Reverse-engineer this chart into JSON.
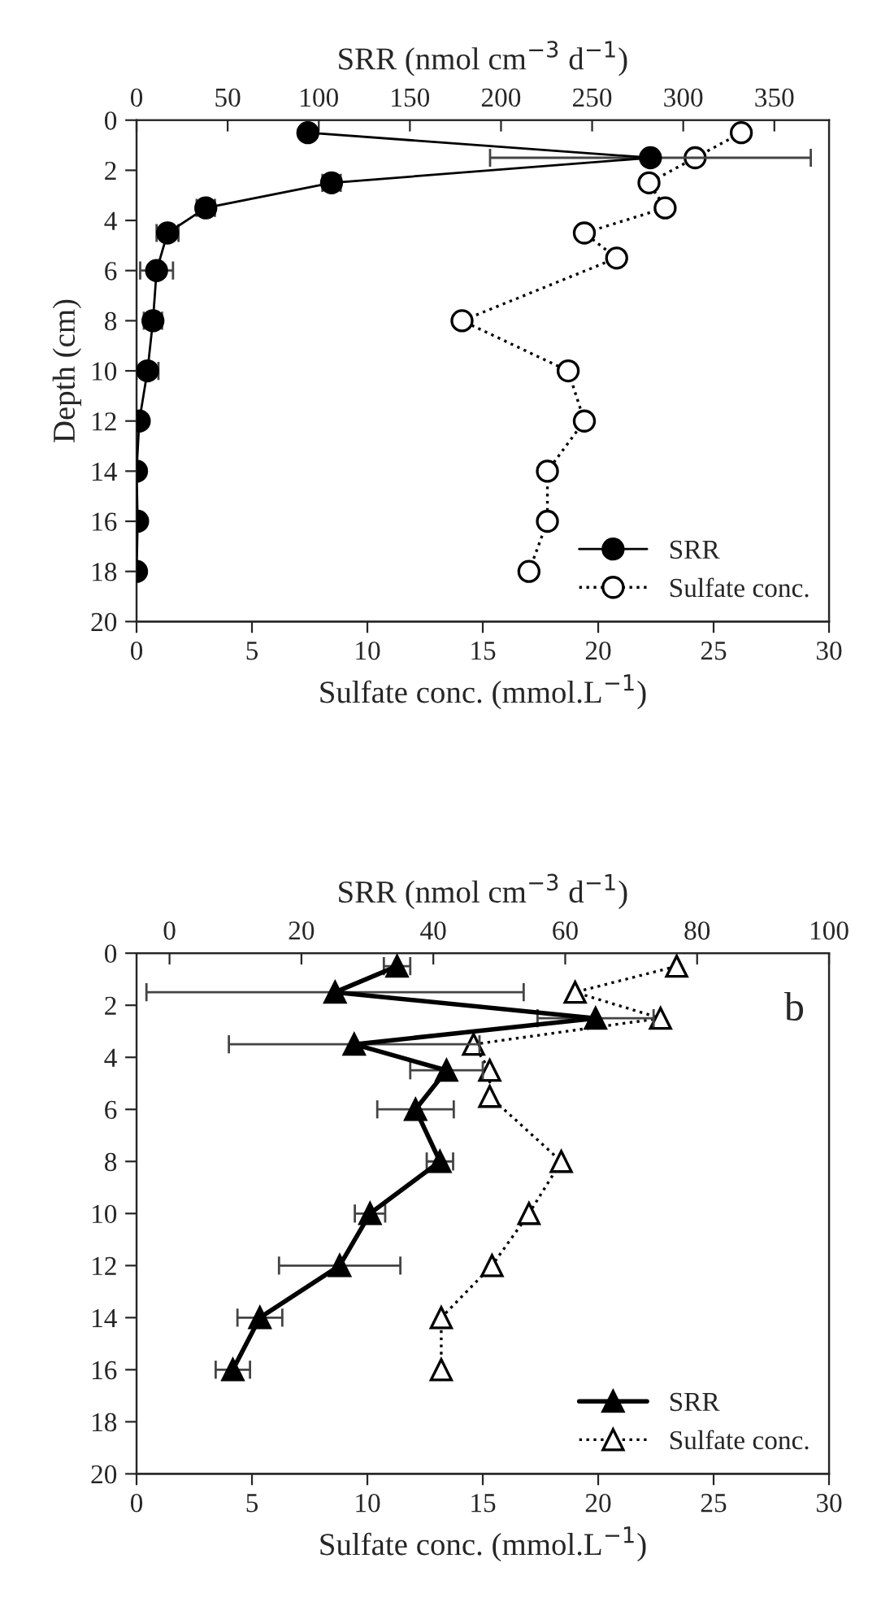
{
  "chart_data": [
    {
      "type": "line",
      "xlabel": "Sulfate conc. (mmol.L$^{−1}$)",
      "ylabel": "Depth (cm)",
      "x2label": "SRR (nmol cm$^{−3}$ d$^{−1}$)",
      "xlim": [
        0,
        30
      ],
      "xticks": [
        0,
        5,
        10,
        15,
        20,
        25,
        30
      ],
      "x2lim": [
        0,
        380
      ],
      "x2ticks": [
        0,
        50,
        100,
        150,
        200,
        250,
        300,
        350
      ],
      "ylim": [
        20,
        0
      ],
      "yticks": [
        0,
        2,
        4,
        6,
        8,
        10,
        12,
        14,
        16,
        18,
        20
      ],
      "grid": false,
      "legend": "bottom right",
      "series": [
        {
          "name": "SRR",
          "axis": "x2",
          "color": "#000000",
          "marker": "circle",
          "line_style": "solid",
          "x": [
            94,
            282,
            107,
            38,
            17,
            11,
            9,
            6,
            1.5,
            0,
            0.6,
            0
          ],
          "values": [
            0.5,
            1.5,
            2.5,
            3.5,
            4.5,
            6,
            8,
            10,
            12,
            14,
            16,
            18
          ],
          "xerrors": [
            null,
            88,
            5,
            5,
            6,
            9,
            5,
            6,
            null,
            null,
            null,
            null
          ]
        },
        {
          "name": "Sulfate conc.",
          "color": "#000000",
          "marker": "circle",
          "line_style": "dotted",
          "x": [
            26.2,
            24.2,
            22.2,
            22.9,
            19.4,
            20.8,
            14.1,
            18.7,
            19.4,
            17.8,
            17.8,
            17.0
          ],
          "values": [
            0.5,
            1.5,
            2.5,
            3.5,
            4.5,
            5.5,
            8,
            10,
            12,
            14,
            16,
            18
          ]
        }
      ]
    },
    {
      "type": "line",
      "xlabel": "Sulfate conc. (mmol.L$^{−1}$)",
      "x2label": "SRR (nmol cm$^{−3}$ d$^{−1}$)",
      "xlim": [
        0,
        30
      ],
      "xticks": [
        0,
        5,
        10,
        15,
        20,
        25,
        30
      ],
      "x2lim": [
        -5,
        100
      ],
      "x2ticks": [
        0,
        20,
        40,
        60,
        80,
        100
      ],
      "ylim": [
        20,
        0
      ],
      "yticks": [
        0,
        2,
        4,
        6,
        8,
        10,
        12,
        14,
        16,
        18,
        20
      ],
      "grid": false,
      "legend": "bottom right",
      "annotations": [
        "b"
      ],
      "series": [
        {
          "name": "SRR",
          "axis": "x2",
          "color": "#000000",
          "marker": "triangle",
          "line_style": "solid",
          "x": [
            34.5,
            25.1,
            64.6,
            28.0,
            42.0,
            37.3,
            41.0,
            30.4,
            25.8,
            13.7,
            9.6
          ],
          "values": [
            0.5,
            1.5,
            2.5,
            3.5,
            4.5,
            6,
            8,
            10,
            12,
            14,
            16
          ],
          "xerrors": [
            2,
            28.6,
            8.8,
            19,
            5.5,
            5.8,
            2,
            2.3,
            9.2,
            3.4,
            2.6
          ]
        },
        {
          "name": "Sulfate conc.",
          "color": "#000000",
          "marker": "triangle",
          "line_style": "dotted",
          "x": [
            23.4,
            19.0,
            22.7,
            14.6,
            15.3,
            15.3,
            18.4,
            17.0,
            15.4,
            13.2,
            13.2
          ],
          "values": [
            0.5,
            1.5,
            2.5,
            3.5,
            4.5,
            5.5,
            8,
            10,
            12,
            14,
            16
          ]
        }
      ]
    }
  ]
}
